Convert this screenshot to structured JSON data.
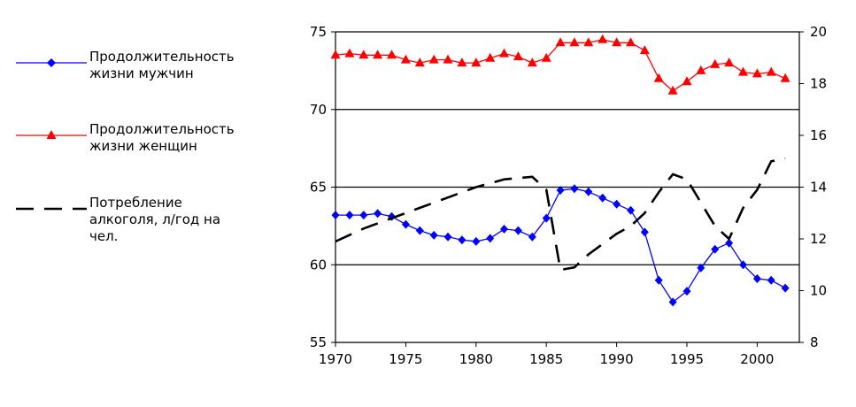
{
  "legend": {
    "male": "Продолжительность\nжизни мужчин",
    "female": "Продолжительность\nжизни женщин",
    "alcohol": "Потребление\nалкоголя, л/год на\nчел."
  },
  "chart_data": {
    "type": "line",
    "x_ticks": [
      "1970",
      "1975",
      "1980",
      "1985",
      "1990",
      "1995",
      "2000"
    ],
    "xlim": [
      1970,
      2003
    ],
    "y_left": {
      "range": [
        55,
        75
      ],
      "ticks": [
        "55",
        "60",
        "65",
        "70",
        "75"
      ]
    },
    "y_right": {
      "range": [
        8,
        20
      ],
      "ticks": [
        "8",
        "10",
        "12",
        "14",
        "16",
        "18",
        "20"
      ]
    },
    "grid": "horizontal",
    "legend_position": "left",
    "series": [
      {
        "name": "Продолжительность жизни мужчин",
        "axis": "left",
        "color": "#0000ff",
        "marker": "diamond",
        "x": [
          1970,
          1971,
          1972,
          1973,
          1974,
          1975,
          1976,
          1977,
          1978,
          1979,
          1980,
          1981,
          1982,
          1983,
          1984,
          1985,
          1986,
          1987,
          1988,
          1989,
          1990,
          1991,
          1992,
          1993,
          1994,
          1995,
          1996,
          1997,
          1998,
          1999,
          2000,
          2001,
          2002
        ],
        "y": [
          63.2,
          63.2,
          63.2,
          63.3,
          63.1,
          62.6,
          62.2,
          61.9,
          61.8,
          61.6,
          61.5,
          61.7,
          62.3,
          62.2,
          61.8,
          63.0,
          64.8,
          64.9,
          64.7,
          64.3,
          63.9,
          63.5,
          62.1,
          59.0,
          57.6,
          58.3,
          59.8,
          61.0,
          61.4,
          60.0,
          59.1,
          59.0,
          58.5
        ]
      },
      {
        "name": "Продолжительность жизни женщин",
        "axis": "left",
        "color": "#ff0000",
        "marker": "triangle",
        "x": [
          1970,
          1971,
          1972,
          1973,
          1974,
          1975,
          1976,
          1977,
          1978,
          1979,
          1980,
          1981,
          1982,
          1983,
          1984,
          1985,
          1986,
          1987,
          1988,
          1989,
          1990,
          1991,
          1992,
          1993,
          1994,
          1995,
          1996,
          1997,
          1998,
          1999,
          2000,
          2001,
          2002
        ],
        "y": [
          73.5,
          73.6,
          73.5,
          73.5,
          73.5,
          73.2,
          73.0,
          73.2,
          73.2,
          73.0,
          73.0,
          73.3,
          73.6,
          73.4,
          73.0,
          73.3,
          74.3,
          74.3,
          74.3,
          74.5,
          74.3,
          74.3,
          73.8,
          72.0,
          71.2,
          71.8,
          72.5,
          72.9,
          73.0,
          72.4,
          72.3,
          72.4,
          72.0
        ]
      },
      {
        "name": "Потребление алкоголя, л/год на чел.",
        "axis": "right",
        "color": "#000000",
        "style": "dashed",
        "x": [
          1970,
          1972,
          1974,
          1976,
          1978,
          1980,
          1982,
          1984,
          1985,
          1986,
          1987,
          1988,
          1990,
          1991,
          1992,
          1993,
          1994,
          1995,
          1996,
          1997,
          1998,
          1999,
          2000,
          2001,
          2002
        ],
        "y": [
          11.9,
          12.4,
          12.8,
          13.2,
          13.6,
          14.0,
          14.3,
          14.4,
          13.9,
          10.8,
          10.9,
          11.4,
          12.2,
          12.5,
          13.0,
          13.8,
          14.5,
          14.3,
          13.4,
          12.5,
          12.0,
          13.2,
          13.9,
          15.0,
          15.1
        ]
      }
    ]
  }
}
